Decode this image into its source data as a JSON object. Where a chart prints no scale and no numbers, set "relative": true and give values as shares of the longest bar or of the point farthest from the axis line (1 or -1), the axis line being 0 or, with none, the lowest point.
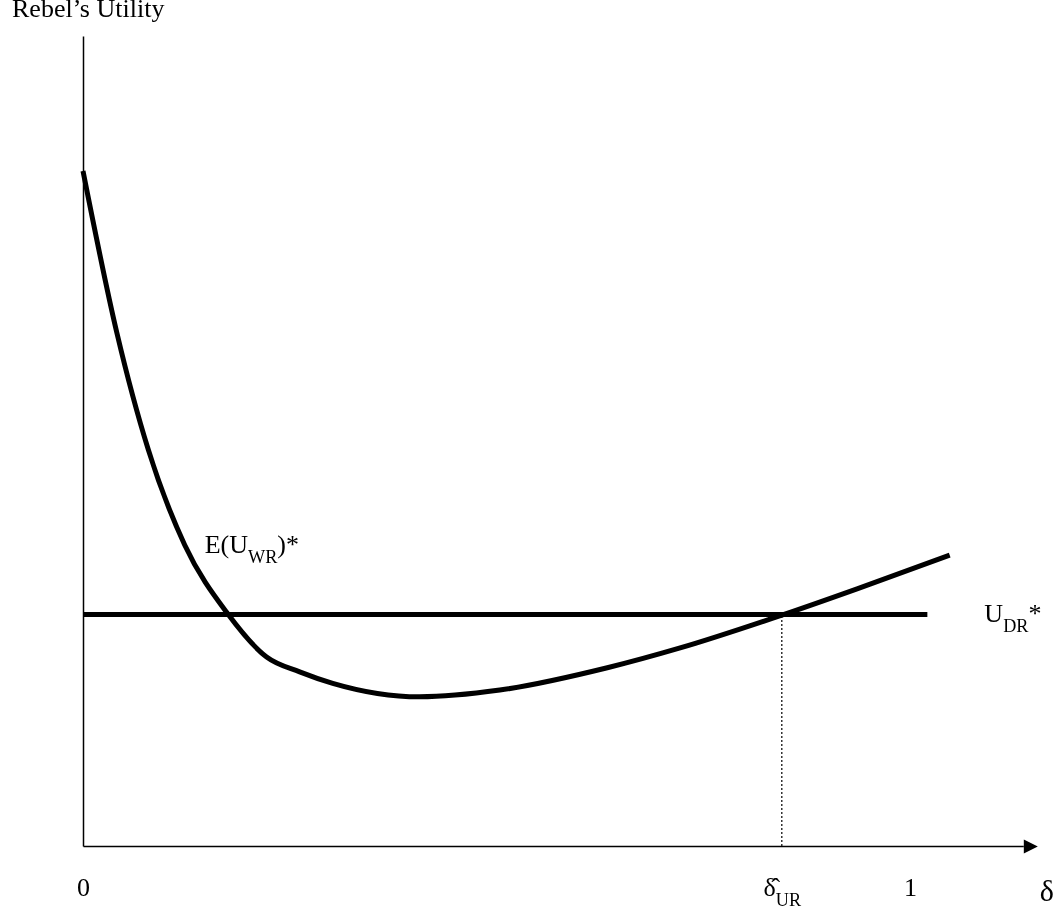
{
  "chart_data": {
    "type": "line",
    "relative": true,
    "annotations": [
      "Rebel’s Utility"
    ],
    "xlabel": "δ",
    "xlim": [
      0,
      1.137
    ],
    "xticks": [
      0,
      {
        "value": 0.845,
        "label": "δ̂$_{UR}$"
      },
      1
    ],
    "grid": false,
    "series": [
      {
        "name": "E(U$_{WR}$)*",
        "color": "#000000",
        "x": [
          0,
          0.041,
          0.079,
          0.123,
          0.175,
          0.222,
          0.262,
          0.302,
          0.407,
          0.504,
          0.634,
          0.721,
          0.845,
          0.936,
          1.048
        ],
        "values": [
          1,
          0.76,
          0.587,
          0.446,
          0.344,
          0.28,
          0.258,
          0.241,
          0.221,
          0.231,
          0.264,
          0.293,
          0.342,
          0.381,
          0.431
        ]
      },
      {
        "name": "U$_{DR}$*",
        "color": "#000000",
        "x": [
          0,
          1.021
        ],
        "values": [
          0.343,
          0.343
        ]
      },
      {
        "color": "#000000",
        "line_style": "dotted",
        "x": [
          0.845,
          0.845
        ],
        "values": [
          0,
          0.343
        ]
      }
    ]
  }
}
